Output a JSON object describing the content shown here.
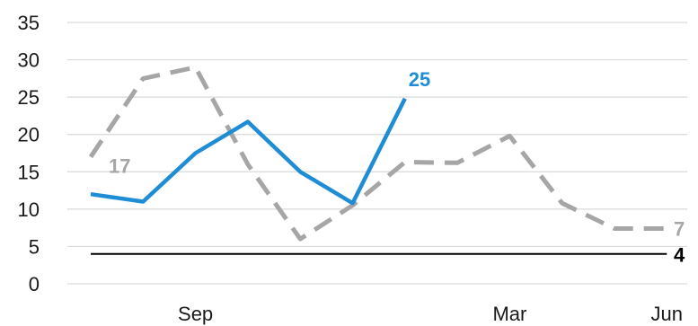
{
  "chart_data": {
    "type": "line",
    "title": "",
    "xlabel": "",
    "ylabel": "",
    "ylim": [
      0,
      35
    ],
    "yticks": [
      "0",
      "5",
      "10",
      "15",
      "20",
      "25",
      "30",
      "35"
    ],
    "x_tick_labels": [
      {
        "index": 2,
        "label": "Sep"
      },
      {
        "index": 8,
        "label": "Mar"
      },
      {
        "index": 11,
        "label": "Jun"
      }
    ],
    "grid": true,
    "legend": "none",
    "n_points": 12,
    "series": [
      {
        "style": "dashed",
        "color": "#a6a6a6",
        "values": [
          17,
          27.5,
          29,
          16,
          6,
          10.5,
          16.3,
          16.2,
          19.8,
          10.8,
          7.4,
          7.4
        ],
        "labels": [
          {
            "index": 0,
            "text": "17"
          },
          {
            "index": 11,
            "text": "7"
          }
        ]
      },
      {
        "style": "solid",
        "color": "#1f8dd6",
        "values": [
          12,
          11,
          17.5,
          21.7,
          15,
          10.8,
          24.8
        ],
        "labels": [
          {
            "index": 6,
            "text": "25"
          }
        ]
      },
      {
        "style": "solid",
        "color": "#000000",
        "values": [
          4,
          4,
          4,
          4,
          4,
          4,
          4,
          4,
          4,
          4,
          4,
          4
        ],
        "labels": [
          {
            "index": 11,
            "text": "4"
          }
        ]
      }
    ]
  }
}
